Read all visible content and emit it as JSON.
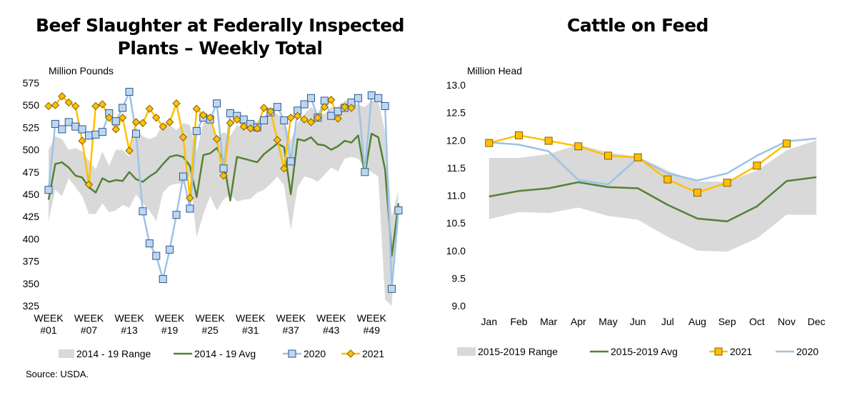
{
  "chart_data": [
    {
      "type": "line",
      "title_lines": [
        "Beef Slaughter at Federally Inspected",
        "Plants – Weekly Total"
      ],
      "ylabel": "Million Pounds",
      "ylim": [
        325,
        575
      ],
      "yticks": [
        325,
        350,
        375,
        400,
        425,
        450,
        475,
        500,
        525,
        550,
        575
      ],
      "xlim": [
        1,
        53
      ],
      "xtick_labels": [
        {
          "week": 1,
          "line1": "WEEK",
          "line2": "#01"
        },
        {
          "week": 7,
          "line1": "WEEK",
          "line2": "#07"
        },
        {
          "week": 13,
          "line1": "WEEK",
          "line2": "#13"
        },
        {
          "week": 19,
          "line1": "WEEK",
          "line2": "#19"
        },
        {
          "week": 25,
          "line1": "WEEK",
          "line2": "#25"
        },
        {
          "week": 31,
          "line1": "WEEK",
          "line2": "#31"
        },
        {
          "week": 37,
          "line1": "WEEK",
          "line2": "#37"
        },
        {
          "week": 43,
          "line1": "WEEK",
          "line2": "#43"
        },
        {
          "week": 49,
          "line1": "WEEK",
          "line2": "#49"
        }
      ],
      "series": [
        {
          "name": "2014 - 19 Range",
          "kind": "band",
          "color": "#d9d9d9",
          "x": [
            1,
            2,
            3,
            4,
            5,
            6,
            7,
            8,
            9,
            10,
            11,
            12,
            13,
            14,
            15,
            16,
            17,
            18,
            19,
            20,
            21,
            22,
            23,
            24,
            25,
            26,
            27,
            28,
            29,
            30,
            31,
            32,
            33,
            34,
            35,
            36,
            37,
            38,
            39,
            40,
            41,
            42,
            43,
            44,
            45,
            46,
            47,
            48,
            49,
            50,
            51,
            52,
            53
          ],
          "low": [
            420,
            455,
            448,
            468,
            458,
            448,
            428,
            428,
            440,
            430,
            432,
            438,
            435,
            450,
            440,
            432,
            420,
            452,
            460,
            462,
            462,
            470,
            402,
            428,
            448,
            432,
            444,
            450,
            442,
            444,
            445,
            452,
            455,
            462,
            470,
            460,
            410,
            458,
            470,
            468,
            464,
            472,
            480,
            476,
            490,
            492,
            490,
            480,
            475,
            470,
            332,
            325,
            455
          ],
          "high": [
            500,
            515,
            512,
            500,
            502,
            498,
            488,
            478,
            498,
            482,
            500,
            500,
            492,
            525,
            515,
            512,
            515,
            530,
            528,
            522,
            530,
            528,
            498,
            530,
            540,
            512,
            520,
            515,
            528,
            522,
            532,
            532,
            538,
            545,
            540,
            535,
            510,
            530,
            540,
            548,
            542,
            540,
            548,
            548,
            555,
            556,
            550,
            548,
            555,
            555,
            520,
            425,
            455
          ]
        },
        {
          "name": "2014 - 19 Avg",
          "kind": "line",
          "color": "#548235",
          "x": [
            1,
            2,
            3,
            4,
            5,
            6,
            7,
            8,
            9,
            10,
            11,
            12,
            13,
            14,
            15,
            16,
            17,
            18,
            19,
            20,
            21,
            22,
            23,
            24,
            25,
            26,
            27,
            28,
            29,
            30,
            31,
            32,
            33,
            34,
            35,
            36,
            37,
            38,
            39,
            40,
            41,
            42,
            43,
            44,
            45,
            46,
            47,
            48,
            49,
            50,
            51,
            52,
            53
          ],
          "values": [
            444,
            484,
            486,
            480,
            471,
            469,
            458,
            452,
            468,
            464,
            466,
            465,
            475,
            467,
            464,
            470,
            475,
            484,
            492,
            494,
            492,
            482,
            447,
            494,
            496,
            502,
            488,
            443,
            492,
            490,
            488,
            486,
            495,
            501,
            507,
            503,
            450,
            512,
            510,
            514,
            506,
            505,
            500,
            504,
            510,
            508,
            516,
            472,
            518,
            514,
            478,
            381,
            440
          ]
        },
        {
          "name": "2020",
          "kind": "line",
          "color": "#9dc3e6",
          "marker": "square",
          "marker_fill": "#bdd7ee",
          "marker_stroke": "#2f5597",
          "x": [
            1,
            2,
            3,
            4,
            5,
            6,
            7,
            8,
            9,
            10,
            11,
            12,
            13,
            14,
            15,
            16,
            17,
            18,
            19,
            20,
            21,
            22,
            23,
            24,
            25,
            26,
            27,
            28,
            29,
            30,
            31,
            32,
            33,
            34,
            35,
            36,
            37,
            38,
            39,
            40,
            41,
            42,
            43,
            44,
            45,
            46,
            47,
            48,
            49,
            50,
            51,
            52,
            53
          ],
          "values": [
            455,
            529,
            523,
            531,
            526,
            523,
            516,
            517,
            520,
            541,
            532,
            547,
            565,
            518,
            431,
            395,
            381,
            355,
            388,
            427,
            470,
            434,
            521,
            536,
            534,
            552,
            479,
            541,
            538,
            534,
            529,
            525,
            533,
            542,
            548,
            533,
            487,
            544,
            551,
            558,
            536,
            555,
            538,
            543,
            547,
            553,
            558,
            475,
            561,
            558,
            549,
            344,
            432
          ]
        },
        {
          "name": "2021",
          "kind": "line",
          "color": "#ffc000",
          "marker": "diamond",
          "marker_fill": "#ffc000",
          "marker_stroke": "#7f6000",
          "x": [
            1,
            2,
            3,
            4,
            5,
            6,
            7,
            8,
            9,
            10,
            11,
            12,
            13,
            14,
            15,
            16,
            17,
            18,
            19,
            20,
            21,
            22,
            23,
            24,
            25,
            26,
            27,
            28,
            29,
            30,
            31,
            32,
            33,
            34,
            35,
            36,
            37,
            38,
            39,
            40,
            41,
            42,
            43,
            44,
            45,
            46,
            47,
            48,
            49,
            50,
            51,
            52,
            53
          ],
          "values": [
            549,
            550,
            560,
            553,
            549,
            510,
            461,
            549,
            551,
            536,
            523,
            536,
            499,
            531,
            530,
            546,
            536,
            526,
            531,
            552,
            514,
            446,
            546,
            539,
            536,
            512,
            471,
            530,
            534,
            526,
            524,
            524,
            547,
            543,
            511,
            479,
            536,
            538,
            534,
            531,
            536,
            548,
            556,
            535,
            548,
            547,
            null,
            null,
            null,
            null,
            null,
            null,
            null
          ]
        }
      ]
    },
    {
      "type": "line",
      "title": "Cattle on Feed",
      "ylabel": "Million Head",
      "ylim": [
        9.0,
        13.0
      ],
      "yticks": [
        "9.0",
        "9.5",
        "10.0",
        "10.5",
        "11.0",
        "11.5",
        "12.0",
        "12.5",
        "13.0"
      ],
      "categories": [
        "Jan",
        "Feb",
        "Mar",
        "Apr",
        "May",
        "Jun",
        "Jul",
        "Aug",
        "Sep",
        "Oct",
        "Nov",
        "Dec"
      ],
      "series": [
        {
          "name": "2015-2019 Range",
          "kind": "band",
          "color": "#d9d9d9",
          "low": [
            10.57,
            10.7,
            10.68,
            10.78,
            10.63,
            10.56,
            10.25,
            10.0,
            9.98,
            10.22,
            10.65,
            10.65
          ],
          "high": [
            11.68,
            11.68,
            11.75,
            11.92,
            11.78,
            11.7,
            11.45,
            11.25,
            11.25,
            11.45,
            11.82,
            12.0
          ]
        },
        {
          "name": "2015-2019 Avg",
          "kind": "line",
          "color": "#548235",
          "values": [
            10.98,
            11.08,
            11.13,
            11.24,
            11.15,
            11.13,
            10.83,
            10.58,
            10.53,
            10.8,
            11.26,
            11.33
          ]
        },
        {
          "name": "2021",
          "kind": "line",
          "color": "#ffc000",
          "marker": "square",
          "marker_fill": "#ffc000",
          "marker_stroke": "#7f6000",
          "values": [
            11.95,
            12.09,
            11.99,
            11.89,
            11.72,
            11.69,
            11.29,
            11.05,
            11.23,
            11.54,
            11.94,
            null
          ]
        },
        {
          "name": "2020",
          "kind": "line",
          "color": "#9dc3e6",
          "values": [
            11.96,
            11.92,
            11.8,
            11.28,
            11.2,
            11.68,
            11.4,
            11.27,
            11.4,
            11.72,
            11.98,
            12.03
          ]
        }
      ]
    }
  ],
  "source": "Source: USDA."
}
